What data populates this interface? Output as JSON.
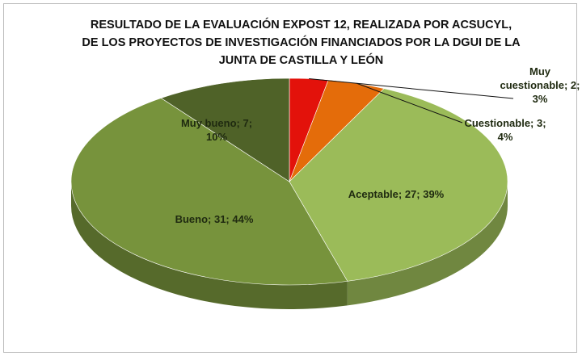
{
  "chart_data": {
    "type": "pie3d",
    "title": "RESULTADO DE LA EVALUACIÓN  EXPOST 12, REALIZADA POR ACSUCYL, DE LOS PROYECTOS DE INVESTIGACIÓN  FINANCIADOS POR LA DGUI DE LA JUNTA DE CASTILLA Y LEÓN",
    "values": [
      2,
      3,
      27,
      31,
      7
    ],
    "value_labels": [
      "Muy cuestionable; 2; 3%",
      "Cuestionable; 3; 4%",
      "Aceptable; 27; 39%",
      "Bueno; 31; 44%",
      "Muy bueno; 7; 10%"
    ],
    "colors": [
      "#e3120b",
      "#e46c0a",
      "#9bbb59",
      "#77933c",
      "#4f6228"
    ]
  }
}
